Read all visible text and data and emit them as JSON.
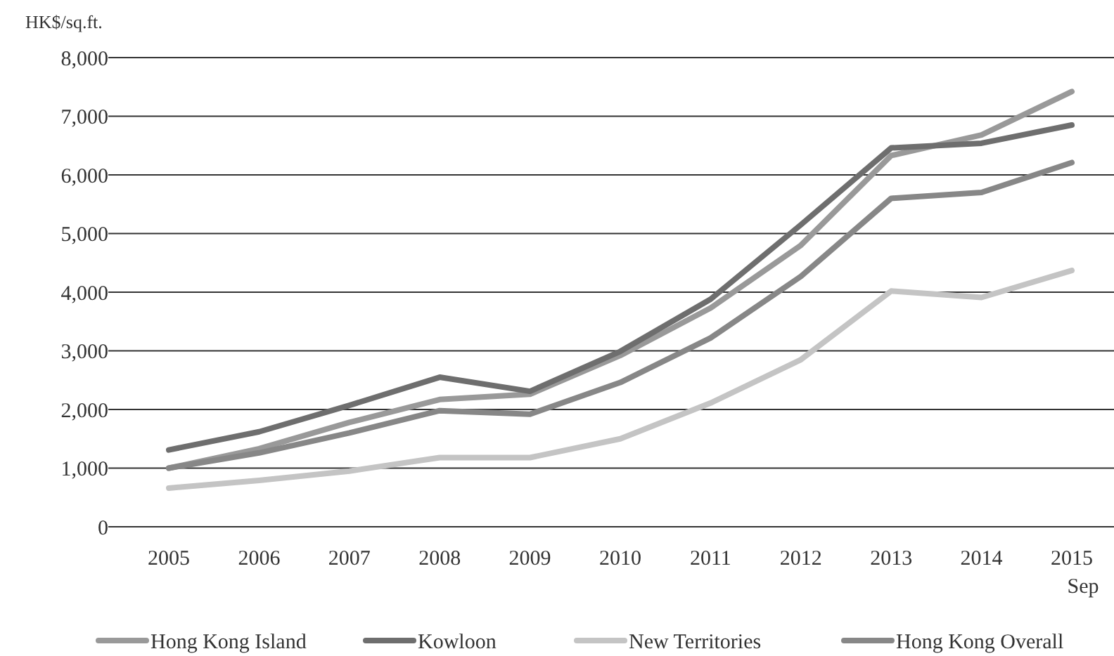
{
  "chart_data": {
    "type": "line",
    "ylabel": "HK$/sq.ft.",
    "categories": [
      "2005",
      "2006",
      "2007",
      "2008",
      "2009",
      "2010",
      "2011",
      "2012",
      "2013",
      "2014",
      "2015\nSep"
    ],
    "series": [
      {
        "name": "Hong Kong Island",
        "color": "#999999",
        "values": [
          1000,
          1330,
          1780,
          2170,
          2260,
          2920,
          3730,
          4800,
          6330,
          6680,
          7420
        ]
      },
      {
        "name": "Kowloon",
        "color": "#6e6e6e",
        "values": [
          1310,
          1620,
          2070,
          2550,
          2310,
          2990,
          3880,
          5150,
          6460,
          6540,
          6850
        ]
      },
      {
        "name": "New Territories",
        "color": "#c4c4c4",
        "values": [
          660,
          790,
          950,
          1180,
          1180,
          1500,
          2110,
          2850,
          4020,
          3910,
          4370
        ]
      },
      {
        "name": "Hong Kong Overall",
        "color": "#878787",
        "values": [
          1000,
          1260,
          1600,
          1980,
          1920,
          2460,
          3220,
          4270,
          5600,
          5700,
          6210
        ]
      }
    ],
    "ylim": [
      0,
      8000
    ],
    "yticks": [
      {
        "value": 0,
        "label": "0"
      },
      {
        "value": 1000,
        "label": "1,000"
      },
      {
        "value": 2000,
        "label": "2,000"
      },
      {
        "value": 3000,
        "label": "3,000"
      },
      {
        "value": 4000,
        "label": "4,000"
      },
      {
        "value": 5000,
        "label": "5,000"
      },
      {
        "value": 6000,
        "label": "6,000"
      },
      {
        "value": 7000,
        "label": "7,000"
      },
      {
        "value": 8000,
        "label": "8,000"
      }
    ],
    "grid": "y",
    "legend": "bottom",
    "marker": "none",
    "line_style": "solid"
  }
}
